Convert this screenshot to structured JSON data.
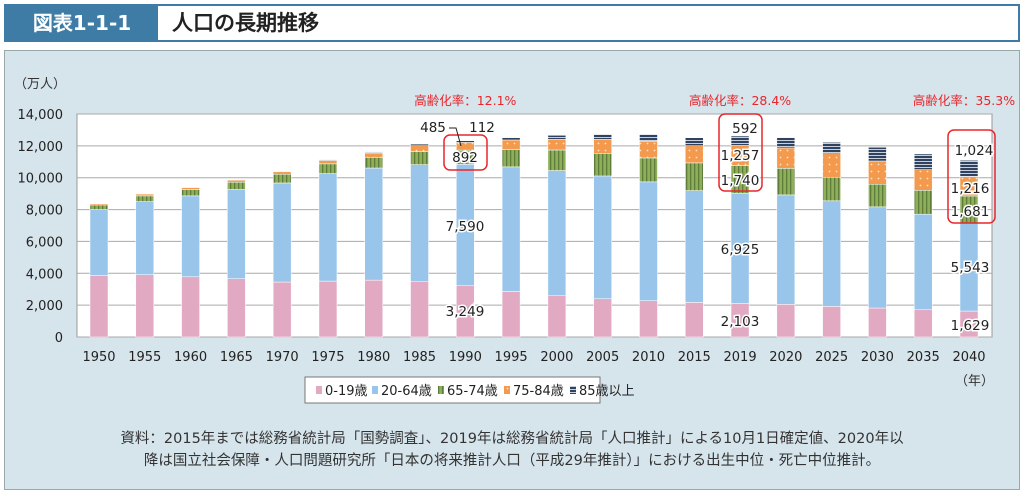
{
  "header": {
    "figure_number": "図表1-1-1",
    "title": "人口の長期推移"
  },
  "chart_data": {
    "type": "bar",
    "stacked": true,
    "title": "",
    "ylabel": "（万人）",
    "xlabel": "（年）",
    "ylim": [
      0,
      14000
    ],
    "yticks": [
      "0",
      "2,000",
      "4,000",
      "6,000",
      "8,000",
      "10,000",
      "12,000",
      "14,000"
    ],
    "grid": true,
    "legend_position": "bottom",
    "categories": [
      "1950",
      "1955",
      "1960",
      "1965",
      "1970",
      "1975",
      "1980",
      "1985",
      "1990",
      "1995",
      "2000",
      "2005",
      "2010",
      "2015",
      "2019",
      "2020",
      "2025",
      "2030",
      "2035",
      "2040"
    ],
    "series": [
      {
        "name": "0-19歳",
        "color": "#e2a9c3",
        "pattern": "solid",
        "values": [
          3870,
          3910,
          3780,
          3660,
          3450,
          3510,
          3570,
          3470,
          3249,
          2860,
          2590,
          2400,
          2280,
          2170,
          2103,
          2050,
          1920,
          1820,
          1710,
          1629
        ]
      },
      {
        "name": "20-64歳",
        "color": "#99c5ea",
        "pattern": "solid",
        "values": [
          4130,
          4590,
          5080,
          5600,
          6220,
          6750,
          7040,
          7350,
          7590,
          7820,
          7860,
          7710,
          7460,
          7020,
          6925,
          6870,
          6630,
          6350,
          6000,
          5543
        ]
      },
      {
        "name": "65-74歳",
        "color": "#8fae5a",
        "pattern": "vertical-stripes",
        "values": [
          290,
          360,
          400,
          460,
          550,
          610,
          670,
          820,
          892,
          1080,
          1290,
          1420,
          1500,
          1740,
          1740,
          1670,
          1480,
          1420,
          1500,
          1681
        ]
      },
      {
        "name": "75-84歳",
        "color": "#f39a4e",
        "pattern": "dots",
        "values": [
          80,
          120,
          120,
          130,
          160,
          210,
          270,
          370,
          485,
          610,
          670,
          880,
          1050,
          1080,
          1257,
          1280,
          1480,
          1460,
          1300,
          1216
        ]
      },
      {
        "name": "85歳以上",
        "color": "#2f4360",
        "pattern": "horizontal-stripes",
        "values": [
          10,
          15,
          20,
          30,
          30,
          40,
          70,
          100,
          112,
          150,
          250,
          310,
          430,
          500,
          592,
          650,
          710,
          860,
          980,
          1024
        ]
      }
    ],
    "data_labels": [
      {
        "year": "1990",
        "labels": [
          "3,249",
          "7,590",
          "892",
          "485",
          "112"
        ]
      },
      {
        "year": "2019",
        "labels": [
          "2,103",
          "6,925",
          "1,740",
          "1,257",
          "592"
        ]
      },
      {
        "year": "2040",
        "labels": [
          "1,629",
          "5,543",
          "1,681",
          "1,216",
          "1,024"
        ]
      }
    ],
    "annotations": [
      {
        "year": "1990",
        "text": "高齢化率：12.1%"
      },
      {
        "year": "2019",
        "text": "高齢化率：28.4%"
      },
      {
        "year": "2040",
        "text": "高齢化率：35.3%"
      }
    ],
    "annotation_color": "#e8262b"
  },
  "source": {
    "line1": "資料：2015年までは総務省統計局「国勢調査」、2019年は総務省統計局「人口推計」による10月1日確定値、2020年以",
    "line2": "降は国立社会保障・人口問題研究所「日本の将来推計人口（平成29年推計）」における出生中位・死亡中位推計。"
  }
}
